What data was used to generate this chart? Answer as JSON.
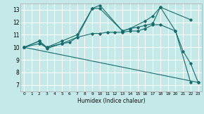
{
  "title": "",
  "xlabel": "Humidex (Indice chaleur)",
  "xlim": [
    -0.5,
    23.5
  ],
  "ylim": [
    6.5,
    13.5
  ],
  "xticks": [
    0,
    1,
    2,
    3,
    4,
    5,
    6,
    7,
    8,
    9,
    10,
    11,
    12,
    13,
    14,
    15,
    16,
    17,
    18,
    19,
    20,
    21,
    22,
    23
  ],
  "yticks": [
    7,
    8,
    9,
    10,
    11,
    12,
    13
  ],
  "bg_color": "#c5e8e8",
  "line_color": "#1a6b6b",
  "grid_color": "#ffffff",
  "lines": [
    {
      "x": [
        0,
        2,
        3,
        5,
        7,
        9,
        10,
        13,
        14,
        15,
        16,
        17,
        18,
        20,
        21,
        22,
        23
      ],
      "y": [
        10.0,
        10.3,
        10.0,
        10.3,
        10.8,
        13.1,
        13.35,
        11.3,
        11.5,
        11.6,
        11.75,
        11.9,
        13.2,
        11.3,
        9.7,
        8.7,
        7.2
      ]
    },
    {
      "x": [
        0,
        2,
        3,
        5,
        7,
        9,
        10,
        13,
        14,
        16,
        17,
        18,
        22
      ],
      "y": [
        10.0,
        10.5,
        10.0,
        10.5,
        11.0,
        13.1,
        13.1,
        11.3,
        11.5,
        12.1,
        12.5,
        13.2,
        12.2
      ]
    },
    {
      "x": [
        0,
        2,
        3,
        5,
        6,
        7,
        9,
        10,
        11,
        12,
        13,
        14,
        15,
        16,
        17,
        18,
        20,
        22
      ],
      "y": [
        10.0,
        10.5,
        9.9,
        10.3,
        10.4,
        10.8,
        11.1,
        11.1,
        11.2,
        11.2,
        11.2,
        11.3,
        11.3,
        11.5,
        11.8,
        11.8,
        11.3,
        7.2
      ]
    },
    {
      "x": [
        0,
        23
      ],
      "y": [
        10.0,
        7.2
      ]
    }
  ]
}
